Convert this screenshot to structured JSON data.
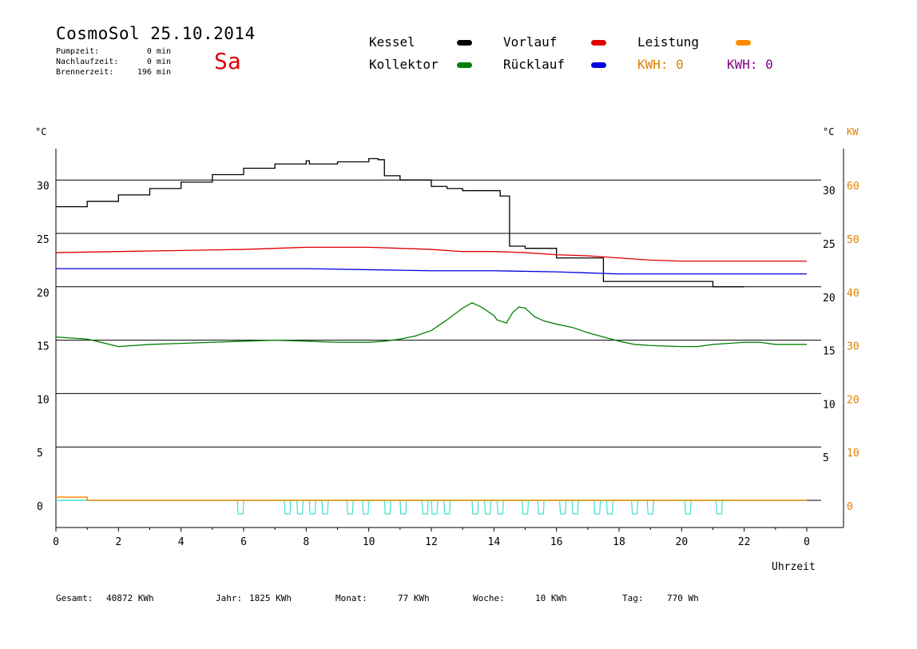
{
  "header": {
    "title": "CosmoSol 25.10.2014",
    "weekday": "Sa",
    "stats": [
      {
        "label": "Pumpzeit:",
        "value": "0 min"
      },
      {
        "label": "Nachlaufzeit:",
        "value": "0 min"
      },
      {
        "label": "Brennerzeit:",
        "value": "196 min"
      }
    ]
  },
  "legend": {
    "items": [
      {
        "label": "Kessel",
        "color": "#000000"
      },
      {
        "label": "Kollektor",
        "color": "#008000"
      },
      {
        "label": "Vorlauf",
        "color": "#e00000"
      },
      {
        "label": "Rücklauf",
        "color": "#0000e0"
      },
      {
        "label": "Leistung",
        "color": "#ff8c00"
      }
    ],
    "kwh_orange": "KWH: 0",
    "kwh_purple": "KWH: 0",
    "kwh_orange_color": "#e08000",
    "kwh_purple_color": "#800080"
  },
  "axes": {
    "left_unit": "°C",
    "right_unit_c": "°C",
    "right_unit_kw": "KW",
    "xlabel": "Uhrzeit"
  },
  "footer": {
    "gesamt": {
      "label": "Gesamt:",
      "value": "40872 KWh"
    },
    "jahr": {
      "label": "Jahr:",
      "value": "1825 KWh"
    },
    "monat": {
      "label": "Monat:",
      "value": "77 KWh"
    },
    "woche": {
      "label": "Woche:",
      "value": "10 KWh"
    },
    "tag": {
      "label": "Tag:",
      "value": "770 Wh"
    }
  },
  "chart_data": {
    "type": "line",
    "title": "CosmoSol 25.10.2014",
    "xlabel": "Uhrzeit",
    "ylabel": "°C",
    "xlim": [
      0,
      24
    ],
    "ylim": [
      -2,
      33
    ],
    "grid": true,
    "x_ticks": [
      "0",
      "2",
      "4",
      "6",
      "8",
      "10",
      "12",
      "14",
      "16",
      "18",
      "20",
      "22",
      "0"
    ],
    "y_ticks_left": [
      0,
      5,
      10,
      15,
      20,
      25,
      30
    ],
    "y_ticks_right_c": [
      5,
      10,
      15,
      20,
      25,
      30
    ],
    "y_ticks_right_kw": [
      0,
      10,
      20,
      30,
      40,
      50,
      60
    ],
    "series": [
      {
        "name": "Kessel",
        "color": "#000000",
        "x": [
          0,
          1,
          2,
          3,
          4,
          5,
          6,
          7,
          8,
          8.1,
          9,
          10,
          10.3,
          10.5,
          11,
          12,
          12.5,
          13,
          13.5,
          14,
          14.2,
          14.5,
          15,
          16,
          17,
          17.3,
          17.5,
          18,
          19,
          20,
          21,
          21,
          22
        ],
        "y": [
          27.5,
          28.0,
          28.6,
          29.2,
          29.8,
          30.5,
          31.1,
          31.5,
          31.8,
          31.5,
          31.7,
          32.0,
          31.9,
          30.4,
          30.0,
          29.4,
          29.2,
          29.0,
          29.0,
          29.0,
          28.5,
          23.8,
          23.6,
          22.7,
          22.7,
          22.7,
          20.5,
          20.5,
          20.5,
          20.5,
          20.5,
          20.0,
          20.0
        ]
      },
      {
        "name": "Kollektor",
        "color": "#008000",
        "x": [
          0,
          1,
          1.3,
          2,
          3,
          4,
          5,
          6,
          7,
          8,
          9,
          10,
          10.5,
          11,
          11.5,
          12,
          12.5,
          13,
          13.3,
          13.6,
          14,
          14.1,
          14.4,
          14.6,
          14.8,
          15,
          15.3,
          15.6,
          16,
          16.5,
          17,
          17.5,
          18,
          18.5,
          19,
          20,
          20.5,
          21,
          21.5,
          22,
          22.5,
          23,
          24
        ],
        "y": [
          15.3,
          15.1,
          14.9,
          14.4,
          14.6,
          14.7,
          14.8,
          14.9,
          15.0,
          14.9,
          14.8,
          14.8,
          14.9,
          15.1,
          15.4,
          15.9,
          16.9,
          18.0,
          18.5,
          18.1,
          17.3,
          16.9,
          16.6,
          17.6,
          18.1,
          18.0,
          17.2,
          16.8,
          16.5,
          16.2,
          15.7,
          15.3,
          14.9,
          14.6,
          14.5,
          14.4,
          14.4,
          14.6,
          14.7,
          14.8,
          14.8,
          14.6,
          14.6
        ]
      },
      {
        "name": "Vorlauf",
        "color": "#e00000",
        "x": [
          0,
          2,
          4,
          6,
          8,
          10,
          11,
          12,
          13,
          14,
          15,
          16,
          17,
          18,
          19,
          20,
          21,
          22,
          24
        ],
        "y": [
          23.2,
          23.3,
          23.4,
          23.5,
          23.7,
          23.7,
          23.6,
          23.5,
          23.3,
          23.3,
          23.2,
          23.0,
          22.9,
          22.7,
          22.5,
          22.4,
          22.4,
          22.4,
          22.4
        ]
      },
      {
        "name": "Rücklauf",
        "color": "#0000e0",
        "x": [
          0,
          4,
          8,
          10,
          12,
          14,
          16,
          17,
          18,
          20,
          22,
          24
        ],
        "y": [
          21.7,
          21.7,
          21.7,
          21.6,
          21.5,
          21.5,
          21.4,
          21.3,
          21.2,
          21.2,
          21.2,
          21.2
        ]
      },
      {
        "name": "Leistung",
        "color": "#ff8c00",
        "x": [
          0,
          1,
          1,
          24
        ],
        "y": [
          0.3,
          0.3,
          0,
          0
        ]
      }
    ],
    "pump_pulses_x": [
      5.8,
      7.3,
      7.7,
      8.1,
      8.5,
      9.3,
      9.8,
      10.5,
      11.0,
      11.7,
      12.0,
      12.4,
      13.3,
      13.7,
      14.1,
      14.9,
      15.4,
      16.1,
      16.5,
      17.2,
      17.6,
      18.4,
      18.9,
      20.1,
      21.1
    ],
    "pump_color": "#40e0d0"
  }
}
